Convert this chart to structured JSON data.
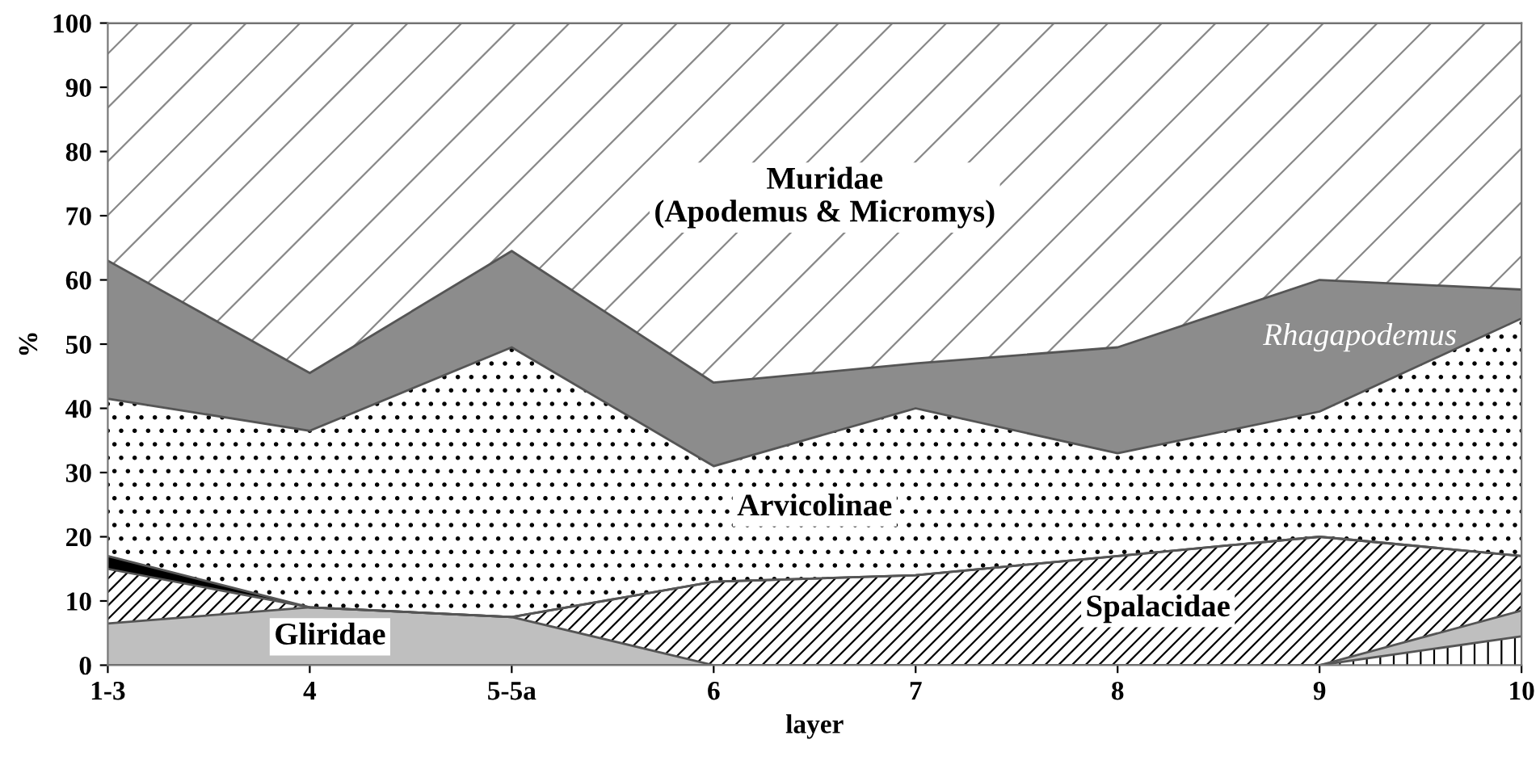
{
  "chart_data": {
    "type": "area",
    "stacked": true,
    "xlabel": "layer",
    "ylabel": "%",
    "categories": [
      "1-3",
      "4",
      "5-5a",
      "6",
      "7",
      "8",
      "9",
      "10"
    ],
    "ylim": [
      0,
      100
    ],
    "yticks": [
      0,
      10,
      20,
      30,
      40,
      50,
      60,
      70,
      80,
      90,
      100
    ],
    "legend": false,
    "series": [
      {
        "color": "#ffffff",
        "values": [
          0,
          0,
          0,
          0,
          0,
          0,
          0,
          4.5
        ]
      },
      {
        "name": "Gliridae",
        "color": "#bfbfbf",
        "values": [
          6.5,
          9,
          7.5,
          0,
          0,
          0,
          0,
          4
        ]
      },
      {
        "name": "Spalacidae",
        "color": "#ffffff",
        "values": [
          8.5,
          0,
          0,
          13,
          14,
          17,
          20,
          8.5
        ]
      },
      {
        "color": "#000000",
        "values": [
          2,
          0,
          0,
          0,
          0,
          0,
          0,
          0
        ]
      },
      {
        "name": "Arvicolinae",
        "color": "#ffffff",
        "values": [
          24.5,
          27.5,
          42,
          18,
          26,
          16,
          19.5,
          37
        ]
      },
      {
        "name": "Rhagapodemus",
        "color": "#8c8c8c",
        "values": [
          21.5,
          9,
          15,
          13,
          7,
          16.5,
          20.5,
          4.5
        ]
      },
      {
        "name": "Muridae\n(Apodemus & Micromys)",
        "color": "#ffffff",
        "values": [
          37,
          54.5,
          35.5,
          56,
          53,
          50.5,
          40,
          41.5
        ]
      }
    ]
  }
}
